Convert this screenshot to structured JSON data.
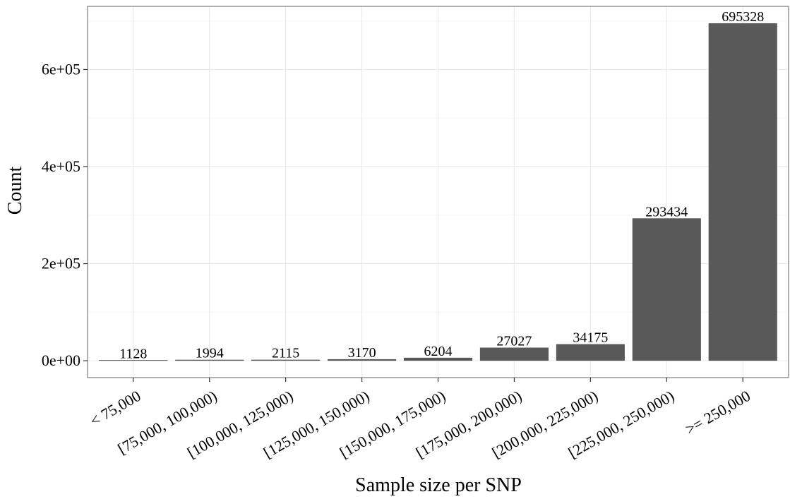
{
  "chart_data": {
    "type": "bar",
    "title": "",
    "xlabel": "Sample size per SNP",
    "ylabel": "Count",
    "categories": [
      "< 75,000",
      "[75,000, 100,000)",
      "[100,000, 125,000)",
      "[125,000, 150,000)",
      "[150,000, 175,000)",
      "[175,000, 200,000)",
      "[200,000, 225,000)",
      "[225,000, 250,000)",
      ">= 250,000"
    ],
    "values": [
      1128,
      1994,
      2115,
      3170,
      6204,
      27027,
      34175,
      293434,
      695328
    ],
    "value_labels": [
      "1128",
      "1994",
      "2115",
      "3170",
      "6204",
      "27027",
      "34175",
      "293434",
      "695328"
    ],
    "yticks": [
      0,
      200000,
      400000,
      600000
    ],
    "ytick_labels": [
      "0e+00",
      "2e+05",
      "4e+05",
      "6e+05"
    ],
    "ylim": [
      -34766,
      730094
    ],
    "grid": true,
    "colors": {
      "bar": "#595959",
      "panel_border": "#7f7f7f",
      "grid_major": "#ebebeb",
      "grid_minor": "#f5f5f5"
    }
  }
}
